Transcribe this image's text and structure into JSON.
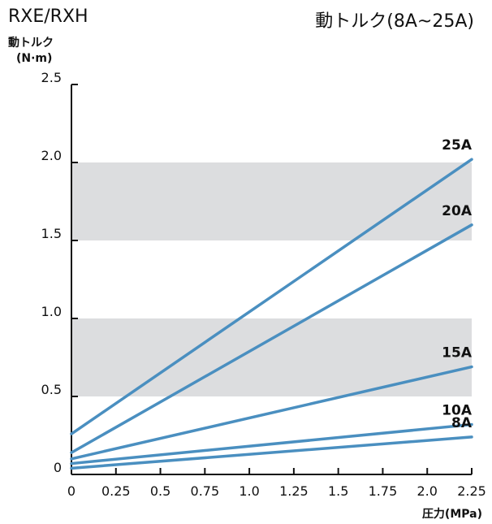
{
  "header": {
    "left": "RXE/RXH",
    "right": "動トルク(8A~25A)"
  },
  "chart_data": {
    "type": "line",
    "ylabel_line1": "動トルク",
    "ylabel_line2": "(N·m)",
    "xlabel": "圧力(MPa)",
    "xlim": [
      0,
      2.25
    ],
    "ylim": [
      0,
      2.5
    ],
    "xticks": [
      0,
      0.25,
      0.5,
      0.75,
      1.0,
      1.25,
      1.5,
      1.75,
      2.0,
      2.25
    ],
    "xtick_labels": [
      "0",
      "0.25",
      "0.5",
      "0.75",
      "1.0",
      "1.25",
      "1.5",
      "1.75",
      "2.0",
      "2.25"
    ],
    "yticks": [
      0,
      0.5,
      1.0,
      1.5,
      2.0,
      2.5
    ],
    "ytick_labels": [
      "0",
      "0.5",
      "1.0",
      "1.5",
      "2.0",
      "2.5"
    ],
    "bands": [
      [
        0.5,
        1.0
      ],
      [
        1.5,
        2.0
      ]
    ],
    "line_color": "#4a8fc0",
    "band_color": "#dcdddf",
    "series": [
      {
        "name": "25A",
        "x": [
          0,
          2.25
        ],
        "y": [
          0.26,
          2.02
        ]
      },
      {
        "name": "20A",
        "x": [
          0,
          2.25
        ],
        "y": [
          0.14,
          1.6
        ]
      },
      {
        "name": "15A",
        "x": [
          0,
          2.25
        ],
        "y": [
          0.1,
          0.69
        ]
      },
      {
        "name": "10A",
        "x": [
          0,
          2.25
        ],
        "y": [
          0.07,
          0.32
        ]
      },
      {
        "name": "8A",
        "x": [
          0,
          2.25
        ],
        "y": [
          0.04,
          0.24
        ]
      }
    ]
  }
}
